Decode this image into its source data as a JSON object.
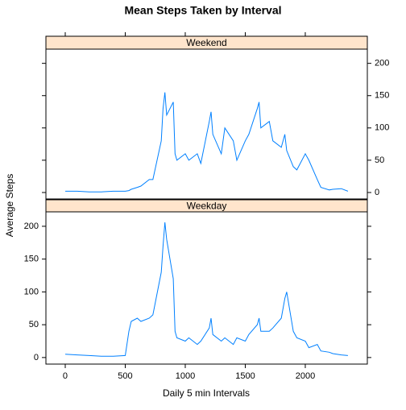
{
  "chart_data": {
    "type": "line",
    "title": "Mean Steps Taken by Interval",
    "xlabel": "Daily 5 min Intervals",
    "ylabel": "Average Steps",
    "x": [
      0,
      100,
      200,
      300,
      400,
      500,
      530,
      550,
      600,
      630,
      700,
      730,
      800,
      815,
      830,
      845,
      900,
      915,
      930,
      1000,
      1030,
      1100,
      1130,
      1200,
      1215,
      1230,
      1300,
      1330,
      1400,
      1430,
      1500,
      1530,
      1600,
      1615,
      1630,
      1700,
      1730,
      1800,
      1830,
      1845,
      1900,
      1930,
      2000,
      2030,
      2100,
      2130,
      2200,
      2230,
      2300,
      2355
    ],
    "series": [
      {
        "name": "Weekend",
        "color": "#0080ff",
        "values": [
          2,
          2,
          1,
          1,
          2,
          2,
          3,
          5,
          8,
          10,
          20,
          20,
          80,
          130,
          155,
          120,
          140,
          60,
          50,
          60,
          50,
          60,
          45,
          110,
          125,
          90,
          60,
          100,
          80,
          50,
          80,
          90,
          130,
          140,
          100,
          110,
          80,
          70,
          90,
          65,
          40,
          35,
          60,
          50,
          20,
          8,
          4,
          5,
          6,
          2
        ]
      },
      {
        "name": "Weekday",
        "color": "#0080ff",
        "values": [
          5,
          4,
          3,
          2,
          2,
          3,
          40,
          55,
          60,
          55,
          60,
          65,
          130,
          170,
          206,
          180,
          120,
          40,
          30,
          25,
          30,
          20,
          25,
          45,
          60,
          35,
          25,
          30,
          20,
          30,
          25,
          35,
          50,
          60,
          40,
          40,
          45,
          60,
          90,
          100,
          40,
          30,
          25,
          15,
          20,
          10,
          8,
          6,
          4,
          3
        ]
      }
    ],
    "xlim": [
      -161,
      2517
    ],
    "xticks": [
      0,
      500,
      1000,
      1500,
      2000
    ],
    "ylim": [
      -10,
      222
    ],
    "yticks": [
      0,
      50,
      100,
      150,
      200
    ]
  }
}
